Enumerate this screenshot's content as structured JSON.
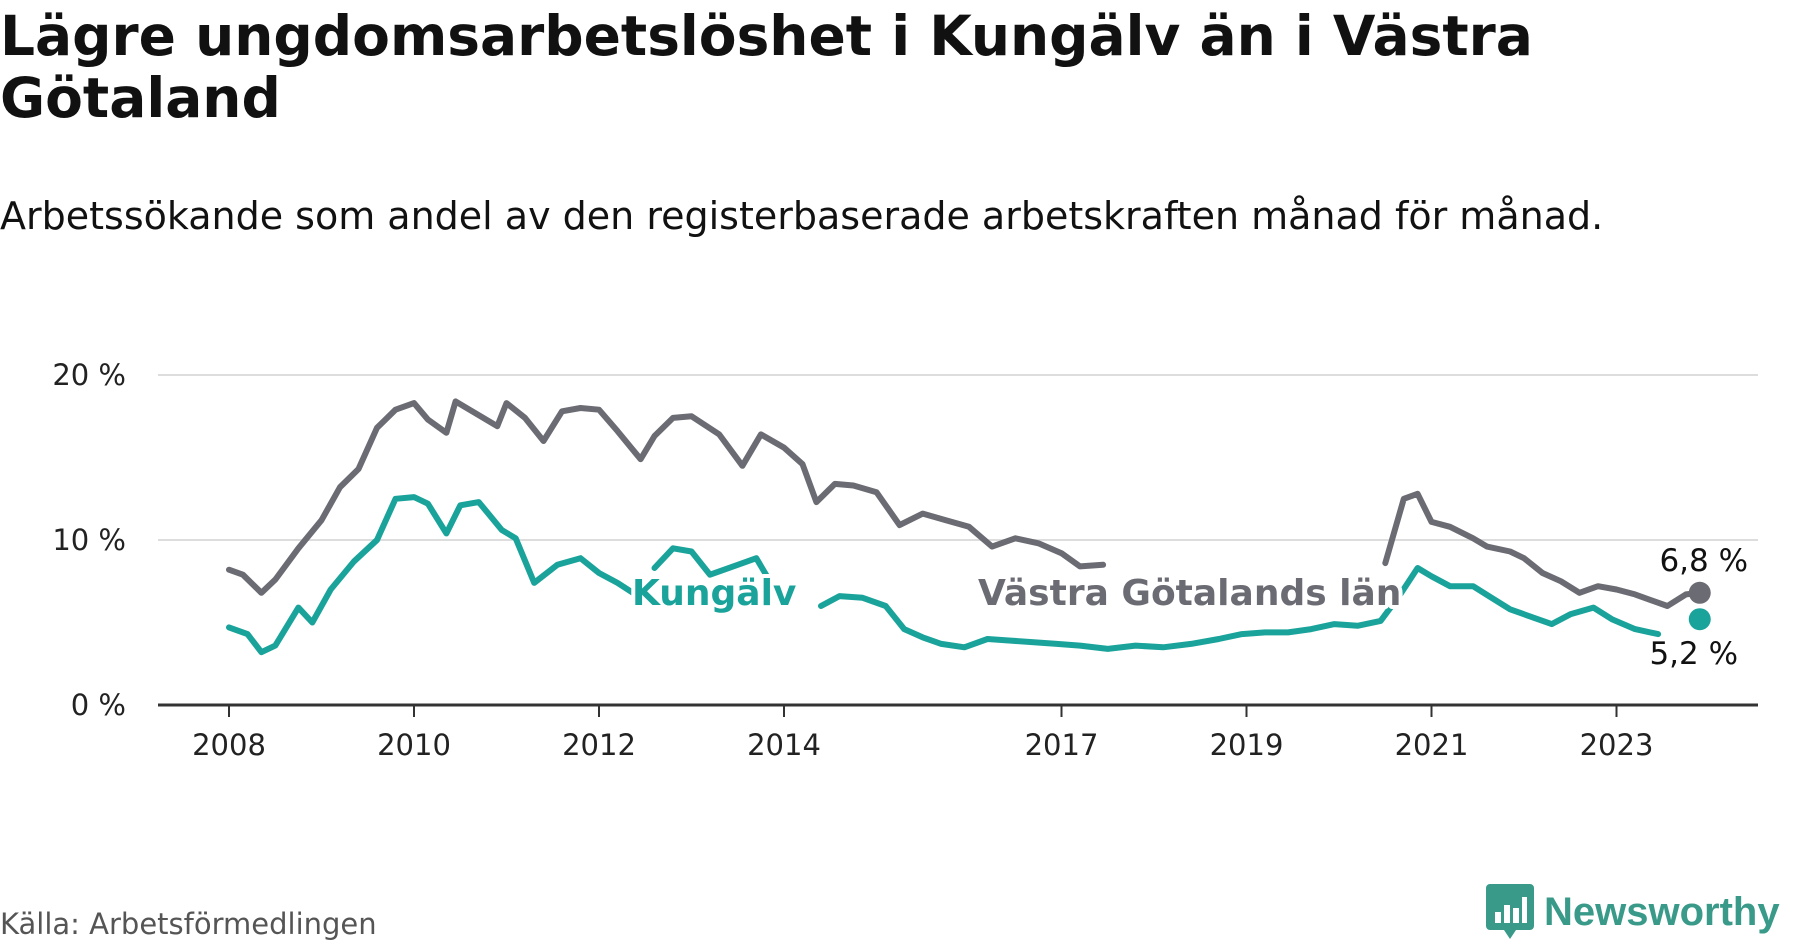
{
  "header": {
    "title": "Lägre ungdomsarbetslöshet i Kungälv än i Västra Götaland",
    "subtitle": "Arbetssökande som andel av den registerbaserade arbetskraften månad för månad."
  },
  "footer": {
    "source": "Källa: Arbetsförmedlingen",
    "logo_text": "Newsworthy"
  },
  "chart_data": {
    "type": "line",
    "title": "Lägre ungdomsarbetslöshet i Kungälv än i Västra Götaland",
    "xlabel": "",
    "ylabel": "",
    "x_range": [
      2007.2,
      2024.8
    ],
    "ylim": [
      0,
      20
    ],
    "y_ticks": [
      0,
      10,
      20
    ],
    "y_tick_labels": [
      "0 %",
      "10 %",
      "20 %"
    ],
    "x_ticks": [
      2008,
      2010,
      2012,
      2014,
      2017,
      2019,
      2021,
      2023
    ],
    "x_tick_labels": [
      "2008",
      "2010",
      "2012",
      "2014",
      "2017",
      "2019",
      "2021",
      "2023"
    ],
    "grid": true,
    "series": [
      {
        "name": "Västra Götalands län",
        "label": "Västra Götalands län",
        "color": "#6b6b73",
        "end_label": "6,8 %",
        "points": [
          [
            2008.0,
            8.2
          ],
          [
            2008.15,
            7.9
          ],
          [
            2008.35,
            6.8
          ],
          [
            2008.5,
            7.6
          ],
          [
            2008.75,
            9.5
          ],
          [
            2009.0,
            11.2
          ],
          [
            2009.2,
            13.2
          ],
          [
            2009.4,
            14.3
          ],
          [
            2009.6,
            16.8
          ],
          [
            2009.8,
            17.9
          ],
          [
            2010.0,
            18.3
          ],
          [
            2010.15,
            17.3
          ],
          [
            2010.35,
            16.5
          ],
          [
            2010.45,
            18.4
          ],
          [
            2010.6,
            17.9
          ],
          [
            2010.9,
            16.9
          ],
          [
            2011.0,
            18.3
          ],
          [
            2011.2,
            17.4
          ],
          [
            2011.4,
            16.0
          ],
          [
            2011.6,
            17.8
          ],
          [
            2011.8,
            18.0
          ],
          [
            2012.0,
            17.9
          ],
          [
            2012.2,
            16.6
          ],
          [
            2012.45,
            14.9
          ],
          [
            2012.6,
            16.3
          ],
          [
            2012.8,
            17.4
          ],
          [
            2013.0,
            17.5
          ],
          [
            2013.3,
            16.4
          ],
          [
            2013.55,
            14.5
          ],
          [
            2013.75,
            16.4
          ],
          [
            2014.0,
            15.6
          ],
          [
            2014.2,
            14.6
          ],
          [
            2014.35,
            12.3
          ],
          [
            2014.55,
            13.4
          ],
          [
            2014.75,
            13.3
          ],
          [
            2015.0,
            12.9
          ],
          [
            2015.25,
            10.9
          ],
          [
            2015.5,
            11.6
          ],
          [
            2015.75,
            11.2
          ],
          [
            2016.0,
            10.8
          ],
          [
            2016.25,
            9.6
          ],
          [
            2016.5,
            10.1
          ],
          [
            2016.75,
            9.8
          ],
          [
            2017.0,
            9.2
          ],
          [
            2017.2,
            8.4
          ],
          [
            2017.45,
            8.5
          ]
        ],
        "points_right": [
          [
            2020.5,
            8.6
          ],
          [
            2020.7,
            12.5
          ],
          [
            2020.85,
            12.8
          ],
          [
            2021.0,
            11.1
          ],
          [
            2021.2,
            10.8
          ],
          [
            2021.45,
            10.1
          ],
          [
            2021.6,
            9.6
          ],
          [
            2021.85,
            9.3
          ],
          [
            2022.0,
            8.9
          ],
          [
            2022.2,
            8.0
          ],
          [
            2022.4,
            7.5
          ],
          [
            2022.6,
            6.8
          ],
          [
            2022.8,
            7.2
          ],
          [
            2023.0,
            7.0
          ],
          [
            2023.2,
            6.7
          ],
          [
            2023.4,
            6.3
          ],
          [
            2023.55,
            6.0
          ],
          [
            2023.75,
            6.7
          ],
          [
            2023.9,
            6.8
          ]
        ],
        "end_point": [
          2023.9,
          6.8
        ]
      },
      {
        "name": "Kungälv",
        "label": "Kungälv",
        "color": "#1aa39a",
        "end_label": "5,2 %",
        "points": [
          [
            2008.0,
            4.7
          ],
          [
            2008.2,
            4.3
          ],
          [
            2008.35,
            3.2
          ],
          [
            2008.5,
            3.6
          ],
          [
            2008.75,
            5.9
          ],
          [
            2008.9,
            5.0
          ],
          [
            2009.1,
            7.0
          ],
          [
            2009.35,
            8.7
          ],
          [
            2009.6,
            10.0
          ],
          [
            2009.8,
            12.5
          ],
          [
            2010.0,
            12.6
          ],
          [
            2010.15,
            12.2
          ],
          [
            2010.35,
            10.4
          ],
          [
            2010.5,
            12.1
          ],
          [
            2010.7,
            12.3
          ],
          [
            2010.95,
            10.6
          ],
          [
            2011.1,
            10.1
          ],
          [
            2011.3,
            7.4
          ],
          [
            2011.55,
            8.5
          ],
          [
            2011.8,
            8.9
          ],
          [
            2012.0,
            8.0
          ],
          [
            2012.2,
            7.4
          ],
          [
            2012.45,
            6.5
          ]
        ],
        "points_mid": [
          [
            2012.6,
            8.3
          ],
          [
            2012.8,
            9.5
          ],
          [
            2013.0,
            9.3
          ],
          [
            2013.2,
            7.9
          ],
          [
            2013.5,
            8.5
          ],
          [
            2013.7,
            8.9
          ],
          [
            2013.9,
            7.0
          ]
        ],
        "points_right": [
          [
            2014.4,
            6.0
          ],
          [
            2014.6,
            6.6
          ],
          [
            2014.85,
            6.5
          ],
          [
            2015.1,
            6.0
          ],
          [
            2015.3,
            4.6
          ],
          [
            2015.5,
            4.1
          ],
          [
            2015.7,
            3.7
          ],
          [
            2015.95,
            3.5
          ],
          [
            2016.2,
            4.0
          ],
          [
            2016.45,
            3.9
          ],
          [
            2016.7,
            3.8
          ],
          [
            2016.95,
            3.7
          ],
          [
            2017.2,
            3.6
          ],
          [
            2017.5,
            3.4
          ],
          [
            2017.8,
            3.6
          ],
          [
            2018.1,
            3.5
          ],
          [
            2018.4,
            3.7
          ],
          [
            2018.7,
            4.0
          ],
          [
            2018.95,
            4.3
          ],
          [
            2019.2,
            4.4
          ],
          [
            2019.45,
            4.4
          ],
          [
            2019.7,
            4.6
          ],
          [
            2019.95,
            4.9
          ],
          [
            2020.2,
            4.8
          ],
          [
            2020.45,
            5.1
          ],
          [
            2020.65,
            6.6
          ],
          [
            2020.85,
            8.3
          ],
          [
            2021.0,
            7.8
          ],
          [
            2021.2,
            7.2
          ],
          [
            2021.45,
            7.2
          ],
          [
            2021.65,
            6.5
          ],
          [
            2021.85,
            5.8
          ],
          [
            2022.05,
            5.4
          ],
          [
            2022.3,
            4.9
          ],
          [
            2022.5,
            5.5
          ],
          [
            2022.75,
            5.9
          ],
          [
            2022.95,
            5.2
          ],
          [
            2023.2,
            4.6
          ],
          [
            2023.45,
            4.3
          ]
        ],
        "end_point": [
          2023.9,
          5.2
        ]
      }
    ],
    "annotations": [
      "6,8 %",
      "5,2 %"
    ]
  }
}
